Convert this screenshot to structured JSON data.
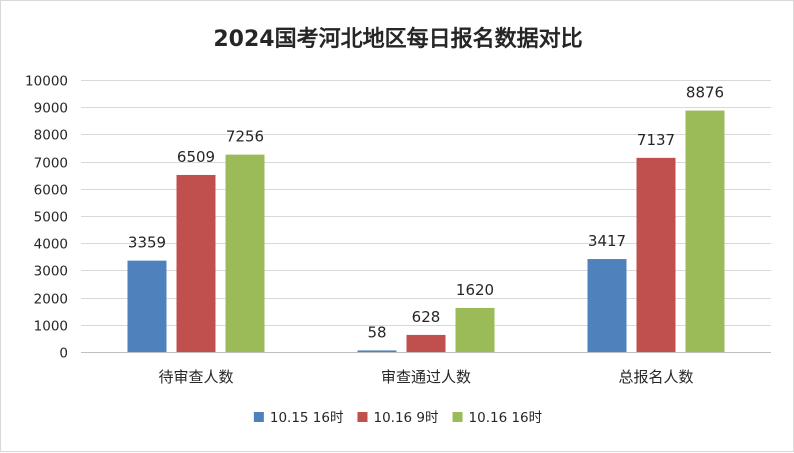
{
  "chart_data": {
    "type": "bar",
    "title": "2024国考河北地区每日报名数据对比",
    "categories": [
      "待审查人数",
      "审查通过人数",
      "总报名人数"
    ],
    "series": [
      {
        "name": "10.15 16时",
        "color": "#4f81bd",
        "values": [
          3359,
          58,
          3417
        ]
      },
      {
        "name": "10.16 9时",
        "color": "#c0504d",
        "values": [
          6509,
          628,
          7137
        ]
      },
      {
        "name": "10.16 16时",
        "color": "#9bbb59",
        "values": [
          7256,
          1620,
          8876
        ]
      }
    ],
    "ylim": [
      0,
      10000
    ],
    "yticks": [
      0,
      1000,
      2000,
      3000,
      4000,
      5000,
      6000,
      7000,
      8000,
      9000,
      10000
    ],
    "xlabel": "",
    "ylabel": "",
    "grid": true,
    "legend_position": "bottom",
    "data_labels": true
  }
}
